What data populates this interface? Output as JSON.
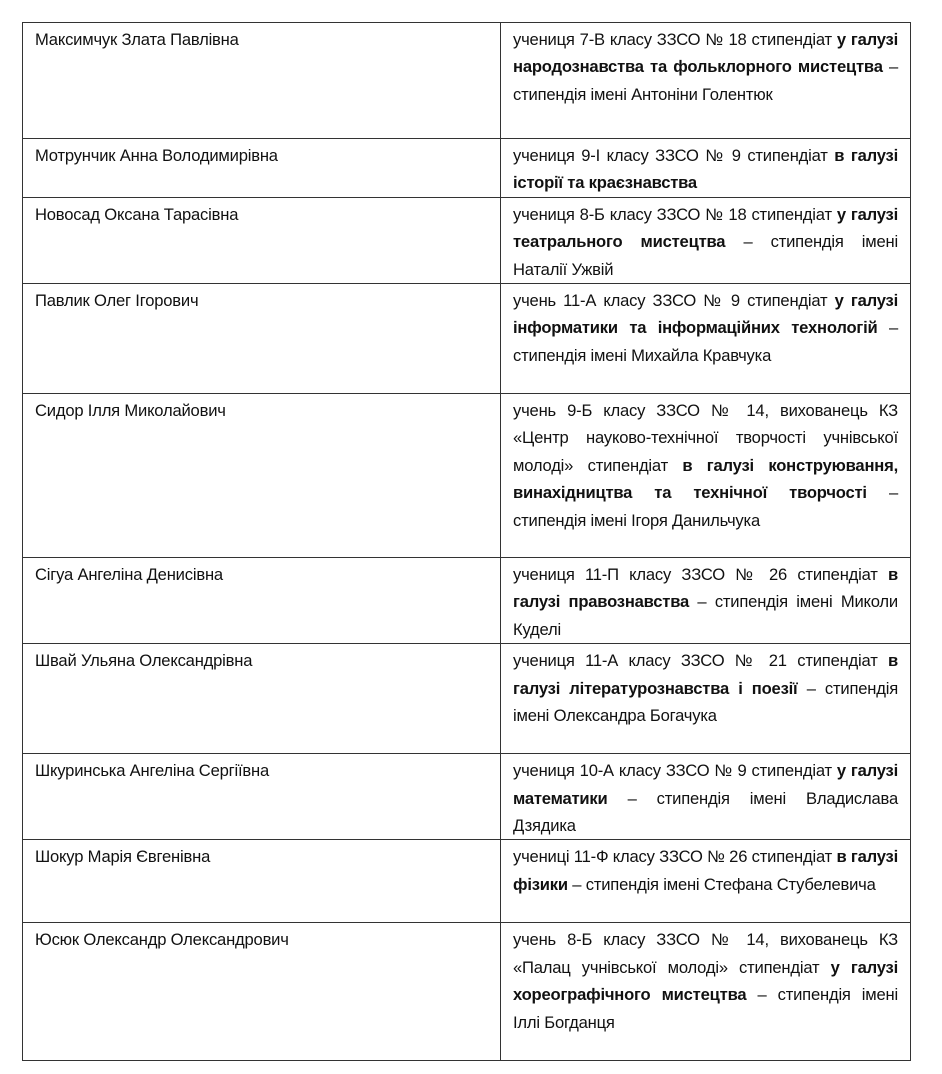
{
  "rows": [
    {
      "name": "Максимчук Злата Павлівна",
      "desc": [
        {
          "t": "учениця 7-В класу ЗЗСО № 18 стипендіат ",
          "b": false
        },
        {
          "t": "у галузі народознавства та фольклорного мистецтва",
          "b": true
        },
        {
          "t": " – стипендія імені Антоніни Голентюк",
          "b": false
        }
      ]
    },
    {
      "name": "Мотрунчик Анна Володимирівна",
      "desc": [
        {
          "t": "учениця 9-І класу ЗЗСО № 9 стипендіат ",
          "b": false
        },
        {
          "t": "в галузі історії та краєзнавства",
          "b": true
        }
      ]
    },
    {
      "name": "Новосад Оксана Тарасівна",
      "desc": [
        {
          "t": "учениця 8-Б класу ЗЗСО № 18 стипендіат ",
          "b": false
        },
        {
          "t": "у галузі театрального мистецтва",
          "b": true
        },
        {
          "t": " – стипендія імені Наталії Ужвій",
          "b": false
        }
      ]
    },
    {
      "name": "Павлик Олег Ігорович",
      "desc": [
        {
          "t": "учень 11-А класу ЗЗСО № 9 стипендіат ",
          "b": false
        },
        {
          "t": "у галузі інформатики та інформаційних технологій",
          "b": true
        },
        {
          "t": " – стипендія імені Михайла Кравчука",
          "b": false
        }
      ]
    },
    {
      "name": "Сидор Ілля Миколайович",
      "desc": [
        {
          "t": "учень 9-Б класу ЗЗСО № 14, вихованець КЗ «Центр науково-технічної творчості учнівської молоді» стипендіат ",
          "b": false
        },
        {
          "t": "в галузі конструювання, винахідництва та технічної творчості",
          "b": true
        },
        {
          "t": " – стипендія імені Ігоря Данильчука",
          "b": false
        }
      ]
    },
    {
      "name": "Сігуа Ангеліна Денисівна",
      "desc": [
        {
          "t": "учениця 11-П класу ЗЗСО № 26 стипендіат ",
          "b": false
        },
        {
          "t": "в галузі правознавства",
          "b": true
        },
        {
          "t": " – стипендія імені Миколи Куделі",
          "b": false
        }
      ]
    },
    {
      "name": "Швай Ульяна Олександрівна",
      "desc": [
        {
          "t": "учениця 11-А класу ЗЗСО № 21 стипендіат ",
          "b": false
        },
        {
          "t": "в галузі літературознавства і поезії",
          "b": true
        },
        {
          "t": " – стипендія імені Олександра Богачука",
          "b": false
        }
      ]
    },
    {
      "name": "Шкуринська Ангеліна Сергіївна",
      "desc": [
        {
          "t": "учениця 10-А класу ЗЗСО № 9 стипендіат ",
          "b": false
        },
        {
          "t": "у галузі математики",
          "b": true
        },
        {
          "t": " – стипендія імені Владислава Дзядика",
          "b": false
        }
      ]
    },
    {
      "name": "Шокур Марія Євгенівна",
      "desc": [
        {
          "t": "учениці 11-Ф класу ЗЗСО № 26 стипендіат ",
          "b": false
        },
        {
          "t": "в галузі фізики",
          "b": true
        },
        {
          "t": " – стипендія імені Стефана Стубелевича",
          "b": false
        }
      ]
    },
    {
      "name": "Юсюк Олександр Олександрович",
      "desc": [
        {
          "t": "учень 8-Б класу ЗЗСО № 14, вихованець КЗ «Палац учнівської молоді» стипендіат ",
          "b": false
        },
        {
          "t": "у галузі хореографічного мистецтва",
          "b": true
        },
        {
          "t": " – стипендія імені Іллі Богданця",
          "b": false
        }
      ]
    }
  ]
}
